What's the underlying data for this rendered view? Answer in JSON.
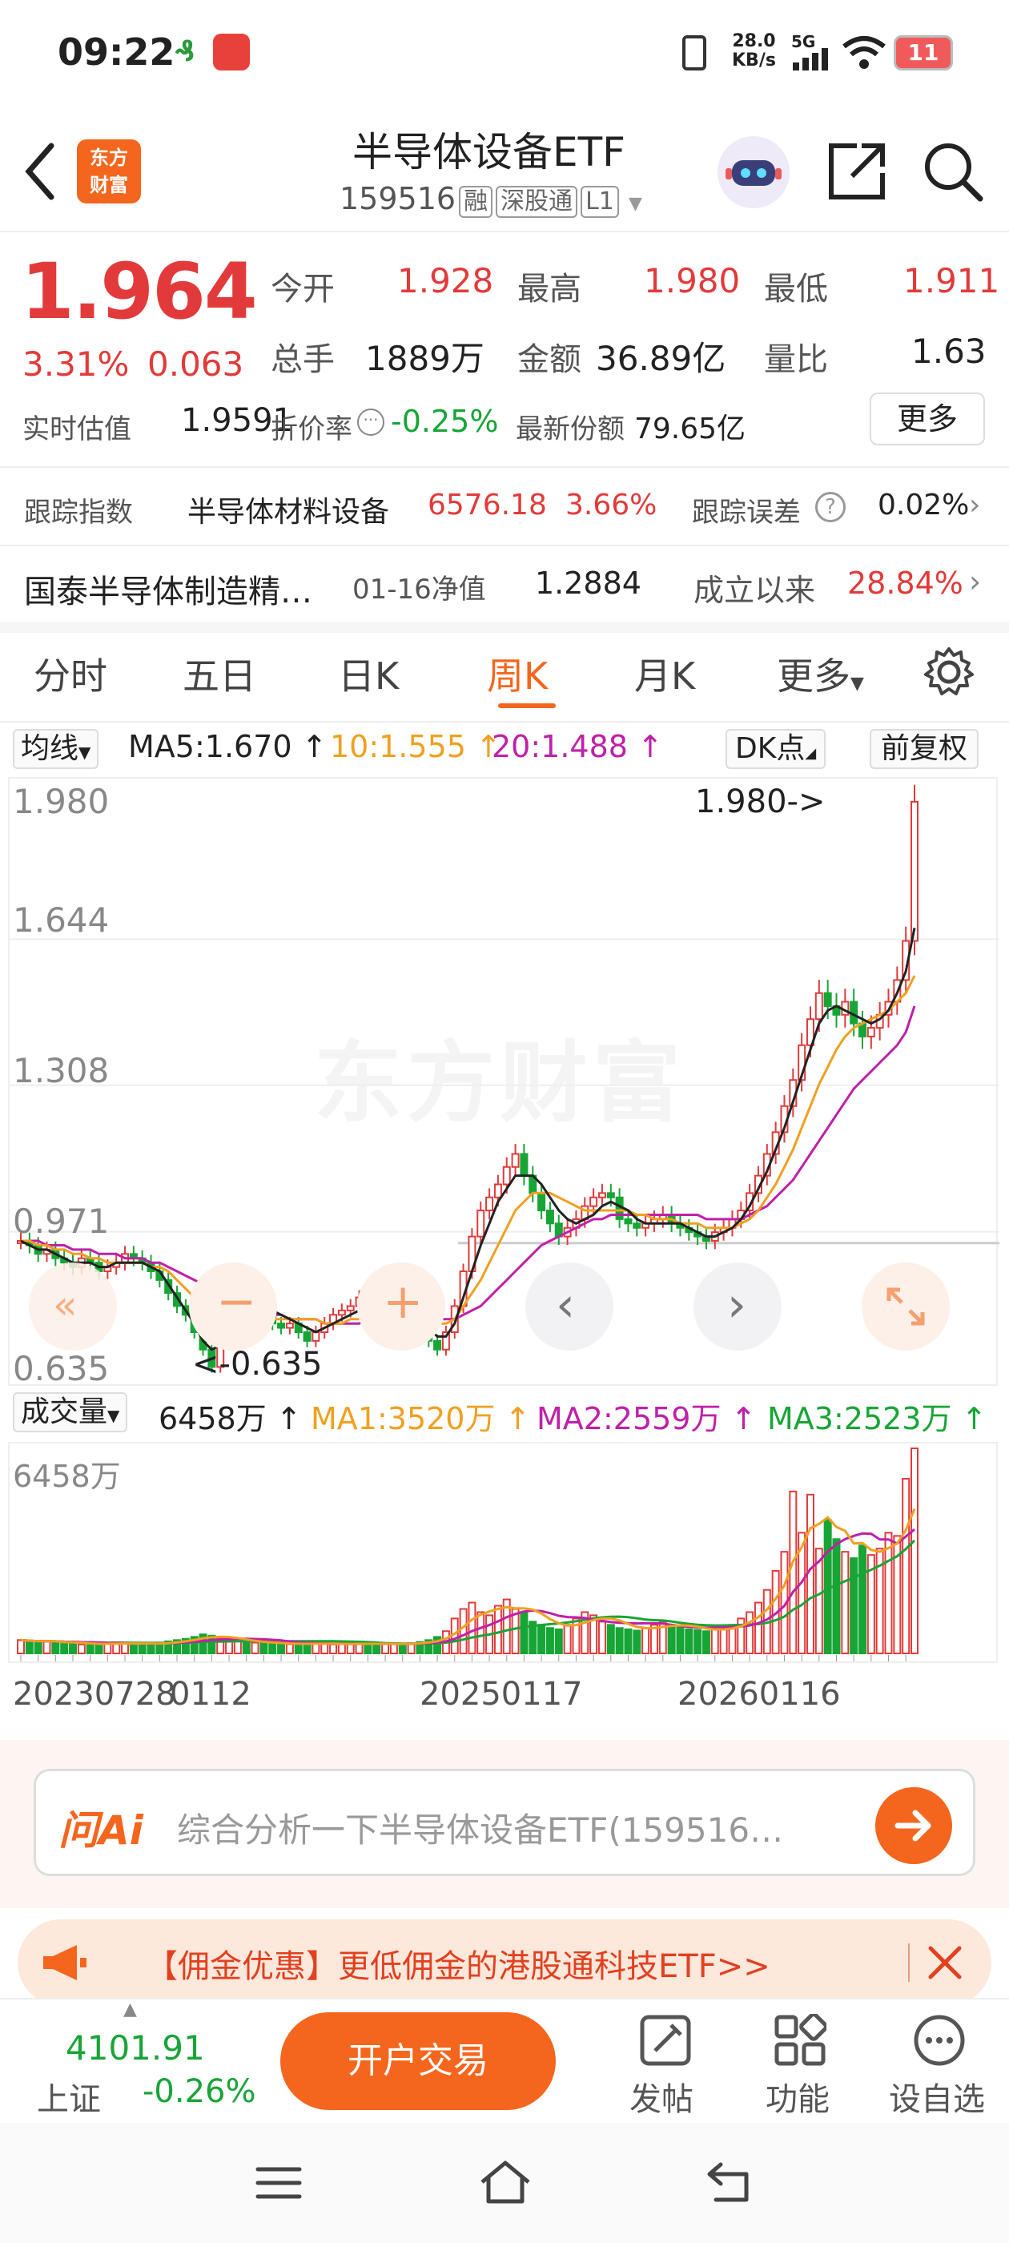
{
  "status_bar": {
    "time": "09:22",
    "net_speed_value": "28.0",
    "net_speed_unit": "KB/s",
    "signal": "5G",
    "battery": "11"
  },
  "header": {
    "logo_line1": "东方",
    "logo_line2": "财富",
    "title": "半导体设备ETF",
    "code": "159516",
    "chip_margin": "融",
    "chip_connect": "深股通",
    "chip_level": "L1"
  },
  "quote": {
    "price": "1.964",
    "change_pct": "3.31%",
    "change_amt": "0.063",
    "open_label": "今开",
    "open": "1.928",
    "high_label": "最高",
    "high": "1.980",
    "low_label": "最低",
    "low": "1.911",
    "volume_label": "总手",
    "volume": "1889万",
    "amount_label": "金额",
    "amount": "36.89亿",
    "ratio_label": "量比",
    "ratio": "1.63",
    "est_label": "实时估值",
    "est": "1.9591",
    "discount_label": "折价率",
    "discount": "-0.25%",
    "shares_label": "最新份额",
    "shares": "79.65亿",
    "more_button": "更多"
  },
  "tracking": {
    "label": "跟踪指数",
    "index_name": "半导体材料设备",
    "index_value": "6576.18",
    "index_pct": "3.66%",
    "error_label": "跟踪误差",
    "error_value": "0.02%"
  },
  "fund": {
    "name": "国泰半导体制造精…",
    "nav_label": "01-16净值",
    "nav": "1.2884",
    "since_label": "成立以来",
    "since_value": "28.84%"
  },
  "tabs": [
    "分时",
    "五日",
    "日K",
    "周K",
    "月K",
    "更多"
  ],
  "active_tab": "周K",
  "ma_bar": {
    "select": "均线",
    "ma5": "MA5:1.670 ↑",
    "ma10": "10:1.555 ↑",
    "ma20": "20:1.488 ↑",
    "dk": "DK点",
    "adjust": "前复权"
  },
  "price_axis": [
    "1.980",
    "1.644",
    "1.308",
    "0.971",
    "0.635"
  ],
  "annotations": {
    "high": "1.980->",
    "low": "<-0.635"
  },
  "watermark": "东方财富",
  "volume_bar": {
    "select": "成交量",
    "vol": "6458万 ↑",
    "ma1": "MA1:3520万 ↑",
    "ma2": "MA2:2559万 ↑",
    "ma3": "MA3:2523万 ↑",
    "axis_max": "6458万"
  },
  "date_axis": [
    "20230728",
    "0112",
    "20250117",
    "20260116"
  ],
  "ai": {
    "logo": "问Ai",
    "prompt": "综合分析一下半导体设备ETF(159516…"
  },
  "promo": {
    "text": "【佣金优惠】更低佣金的港股通科技ETF>>"
  },
  "bottom": {
    "index_value": "4101.91",
    "index_name": "上证",
    "index_pct": "-0.26%",
    "trade_button": "开户交易",
    "post": "发帖",
    "functions": "功能",
    "watchlist": "设自选"
  },
  "colors": {
    "up": "#e23a3a",
    "down": "#17a536",
    "accent": "#f4661d",
    "ma5": "#222222",
    "ma10": "#f0a020",
    "ma20": "#c020a8"
  },
  "chart_data": {
    "type": "candlestick",
    "period": "weekly",
    "ylim": [
      0.635,
      1.98
    ],
    "y_ticks": [
      "1.980",
      "1.644",
      "1.308",
      "0.971",
      "0.635"
    ],
    "x_ticks": [
      "20230728",
      "0112",
      "20250117",
      "20260116"
    ],
    "close": [
      0.95,
      0.94,
      0.92,
      0.93,
      0.91,
      0.9,
      0.89,
      0.91,
      0.9,
      0.88,
      0.89,
      0.9,
      0.92,
      0.91,
      0.9,
      0.88,
      0.86,
      0.83,
      0.8,
      0.78,
      0.74,
      0.7,
      0.66,
      0.72,
      0.76,
      0.8,
      0.78,
      0.82,
      0.8,
      0.76,
      0.75,
      0.76,
      0.74,
      0.72,
      0.74,
      0.76,
      0.78,
      0.79,
      0.8,
      0.82,
      0.79,
      0.78,
      0.79,
      0.8,
      0.77,
      0.78,
      0.76,
      0.72,
      0.7,
      0.74,
      0.8,
      0.88,
      0.96,
      1.02,
      1.05,
      1.08,
      1.12,
      1.15,
      1.1,
      1.06,
      1.02,
      0.99,
      0.96,
      0.98,
      1.0,
      1.03,
      1.05,
      1.06,
      1.05,
      1.0,
      0.99,
      0.98,
      0.99,
      1.0,
      1.01,
      0.99,
      0.98,
      0.97,
      0.96,
      0.95,
      0.97,
      0.98,
      1.0,
      1.02,
      1.06,
      1.1,
      1.15,
      1.2,
      1.26,
      1.32,
      1.4,
      1.46,
      1.52,
      1.49,
      1.47,
      1.5,
      1.45,
      1.42,
      1.44,
      1.47,
      1.5,
      1.55,
      1.64,
      1.96
    ],
    "ma5": [
      0.95,
      0.94,
      0.93,
      0.93,
      0.92,
      0.91,
      0.9,
      0.9,
      0.9,
      0.89,
      0.89,
      0.9,
      0.9,
      0.9,
      0.9,
      0.89,
      0.88,
      0.85,
      0.82,
      0.79,
      0.76,
      0.72,
      0.7,
      0.71,
      0.73,
      0.76,
      0.77,
      0.79,
      0.8,
      0.79,
      0.78,
      0.77,
      0.76,
      0.75,
      0.74,
      0.75,
      0.76,
      0.77,
      0.78,
      0.79,
      0.8,
      0.8,
      0.79,
      0.79,
      0.78,
      0.78,
      0.77,
      0.75,
      0.73,
      0.73,
      0.76,
      0.82,
      0.88,
      0.94,
      0.99,
      1.04,
      1.07,
      1.1,
      1.1,
      1.1,
      1.08,
      1.05,
      1.02,
      1.0,
      0.99,
      1.0,
      1.01,
      1.03,
      1.04,
      1.03,
      1.02,
      1.0,
      0.99,
      0.99,
      0.99,
      0.99,
      0.99,
      0.98,
      0.97,
      0.96,
      0.96,
      0.97,
      0.98,
      1.0,
      1.03,
      1.07,
      1.11,
      1.16,
      1.21,
      1.27,
      1.33,
      1.39,
      1.45,
      1.48,
      1.49,
      1.48,
      1.47,
      1.46,
      1.45,
      1.46,
      1.48,
      1.52,
      1.57,
      1.67
    ],
    "ma10": [
      0.95,
      0.95,
      0.94,
      0.94,
      0.93,
      0.93,
      0.92,
      0.92,
      0.91,
      0.91,
      0.9,
      0.9,
      0.9,
      0.9,
      0.9,
      0.89,
      0.89,
      0.88,
      0.86,
      0.84,
      0.82,
      0.8,
      0.78,
      0.76,
      0.75,
      0.75,
      0.75,
      0.76,
      0.76,
      0.77,
      0.77,
      0.77,
      0.77,
      0.77,
      0.77,
      0.76,
      0.76,
      0.76,
      0.77,
      0.77,
      0.78,
      0.78,
      0.78,
      0.79,
      0.79,
      0.79,
      0.78,
      0.77,
      0.76,
      0.76,
      0.77,
      0.8,
      0.83,
      0.86,
      0.9,
      0.94,
      0.98,
      1.02,
      1.04,
      1.06,
      1.06,
      1.06,
      1.05,
      1.04,
      1.03,
      1.02,
      1.02,
      1.02,
      1.02,
      1.02,
      1.02,
      1.01,
      1.01,
      1.0,
      1.0,
      1.0,
      0.99,
      0.99,
      0.99,
      0.98,
      0.98,
      0.98,
      0.98,
      0.99,
      1.0,
      1.02,
      1.05,
      1.08,
      1.12,
      1.16,
      1.21,
      1.26,
      1.31,
      1.35,
      1.39,
      1.42,
      1.44,
      1.45,
      1.46,
      1.47,
      1.48,
      1.5,
      1.52,
      1.56
    ],
    "ma20": [
      0.95,
      0.95,
      0.95,
      0.94,
      0.94,
      0.94,
      0.93,
      0.93,
      0.93,
      0.92,
      0.92,
      0.92,
      0.91,
      0.91,
      0.91,
      0.9,
      0.9,
      0.89,
      0.88,
      0.87,
      0.86,
      0.85,
      0.84,
      0.83,
      0.82,
      0.81,
      0.8,
      0.79,
      0.79,
      0.78,
      0.78,
      0.77,
      0.77,
      0.77,
      0.77,
      0.76,
      0.76,
      0.76,
      0.76,
      0.76,
      0.77,
      0.77,
      0.77,
      0.77,
      0.77,
      0.77,
      0.77,
      0.77,
      0.77,
      0.77,
      0.77,
      0.78,
      0.79,
      0.8,
      0.82,
      0.84,
      0.86,
      0.88,
      0.9,
      0.92,
      0.94,
      0.95,
      0.96,
      0.97,
      0.98,
      0.99,
      1.0,
      1.0,
      1.01,
      1.01,
      1.01,
      1.01,
      1.01,
      1.01,
      1.01,
      1.01,
      1.01,
      1.01,
      1.01,
      1.0,
      1.0,
      1.0,
      1.0,
      1.0,
      1.01,
      1.02,
      1.03,
      1.05,
      1.07,
      1.09,
      1.12,
      1.15,
      1.18,
      1.21,
      1.24,
      1.27,
      1.3,
      1.32,
      1.34,
      1.36,
      1.38,
      1.4,
      1.43,
      1.49
    ],
    "volume_ylim": [
      0,
      6458
    ],
    "volume_unit": "万",
    "volume": [
      420,
      380,
      350,
      400,
      360,
      300,
      330,
      280,
      310,
      290,
      300,
      350,
      320,
      300,
      280,
      310,
      340,
      380,
      420,
      460,
      520,
      600,
      560,
      480,
      420,
      380,
      360,
      340,
      330,
      310,
      300,
      290,
      300,
      310,
      320,
      300,
      280,
      290,
      310,
      330,
      300,
      280,
      290,
      310,
      300,
      320,
      360,
      420,
      520,
      700,
      1100,
      1400,
      1600,
      1300,
      1200,
      1500,
      1700,
      1400,
      1300,
      1000,
      900,
      800,
      760,
      900,
      1100,
      1300,
      1200,
      1000,
      900,
      800,
      760,
      720,
      800,
      900,
      1000,
      900,
      820,
      760,
      740,
      700,
      760,
      820,
      900,
      1100,
      1300,
      1600,
      2000,
      2600,
      3200,
      5100,
      3800,
      5000,
      3300,
      4200,
      3600,
      3200,
      3000,
      3400,
      3100,
      3300,
      3800,
      3700,
      5500,
      6458
    ]
  }
}
